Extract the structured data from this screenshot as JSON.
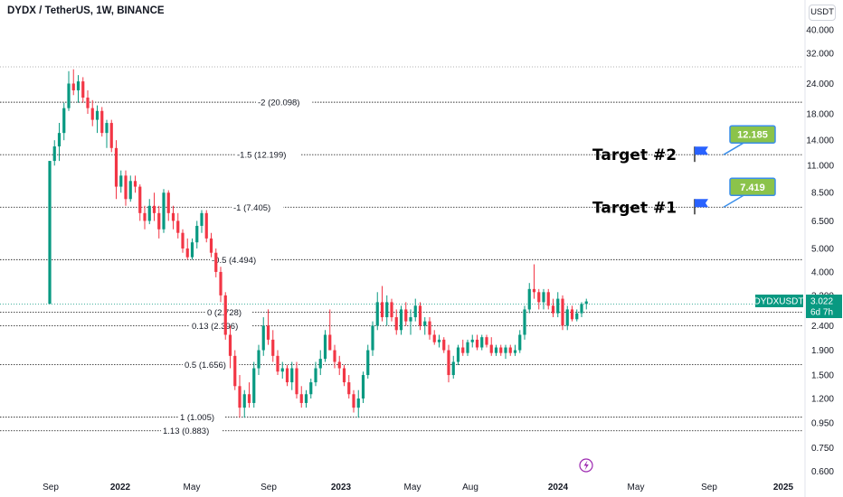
{
  "header": {
    "title": "DYDX / TetherUS, 1W, BINANCE"
  },
  "price_scale": {
    "unit": "USDT"
  },
  "current_price": {
    "symbol": "DYDXUSDT",
    "value": "3.022",
    "countdown": "6d 7h",
    "color": "#089981"
  },
  "colors": {
    "up": "#089981",
    "down": "#f23645",
    "callout": "#8bc34a",
    "callout_border": "#3a8eea",
    "flag": "#2962ff"
  },
  "chart_data": {
    "type": "candlestick",
    "title": "DYDX / TetherUS, 1W, BINANCE",
    "yscale": "log",
    "ylim": [
      0.6,
      40
    ],
    "y_ticks": [
      "40.000",
      "32.000",
      "24.000",
      "18.000",
      "14.000",
      "11.000",
      "8.500",
      "6.500",
      "5.000",
      "4.000",
      "3.022",
      "2.400",
      "1.900",
      "1.500",
      "1.200",
      "0.950",
      "0.750",
      "0.600"
    ],
    "x_ticks": [
      "Sep",
      "2022",
      "May",
      "Sep",
      "2023",
      "May",
      "Aug",
      "2024",
      "May",
      "Sep",
      "2025"
    ],
    "fib_levels": [
      {
        "label": "-2 (20.098)",
        "value": 20.098
      },
      {
        "label": "-1.5 (12.199)",
        "value": 12.199
      },
      {
        "label": "-1 (7.405)",
        "value": 7.405
      },
      {
        "label": "-0.5 (4.494)",
        "value": 4.494
      },
      {
        "label": "0 (2.728)",
        "value": 2.728
      },
      {
        "label": "0.13 (2.396)",
        "value": 2.396
      },
      {
        "label": "0.5 (1.656)",
        "value": 1.656
      },
      {
        "label": "1 (1.005)",
        "value": 1.005
      },
      {
        "label": "1.13 (0.883)",
        "value": 0.883
      }
    ],
    "targets": [
      {
        "label": "Target #2",
        "value": "12.185",
        "level": 12.199
      },
      {
        "label": "Target #1",
        "value": "7.419",
        "level": 7.405
      }
    ],
    "candles": [
      [
        2.95,
        11.5,
        2.95,
        11.5
      ],
      [
        11.5,
        14.0,
        11.0,
        13.2
      ],
      [
        13.2,
        16.5,
        11.5,
        15.0
      ],
      [
        15.0,
        20.0,
        14.0,
        19.0
      ],
      [
        19.0,
        27.0,
        18.5,
        24.0
      ],
      [
        24.0,
        27.5,
        21.5,
        22.5
      ],
      [
        22.5,
        26.0,
        20.0,
        24.5
      ],
      [
        24.5,
        25.5,
        20.0,
        21.0
      ],
      [
        21.0,
        22.5,
        18.0,
        19.0
      ],
      [
        19.0,
        20.5,
        16.0,
        17.0
      ],
      [
        17.0,
        19.5,
        15.0,
        18.5
      ],
      [
        18.5,
        19.2,
        14.5,
        15.0
      ],
      [
        15.0,
        17.0,
        13.0,
        16.5
      ],
      [
        16.5,
        17.0,
        12.5,
        13.0
      ],
      [
        13.0,
        14.0,
        8.0,
        9.0
      ],
      [
        9.0,
        10.5,
        8.5,
        10.0
      ],
      [
        10.0,
        10.5,
        7.5,
        8.0
      ],
      [
        8.0,
        10.0,
        7.8,
        9.5
      ],
      [
        9.5,
        10.0,
        8.5,
        9.0
      ],
      [
        9.0,
        9.2,
        6.5,
        7.0
      ],
      [
        7.0,
        7.5,
        6.0,
        6.5
      ],
      [
        6.5,
        8.0,
        6.3,
        7.5
      ],
      [
        7.5,
        8.5,
        6.5,
        7.0
      ],
      [
        7.0,
        7.5,
        5.5,
        6.0
      ],
      [
        6.0,
        8.8,
        5.8,
        8.5
      ],
      [
        8.5,
        8.7,
        6.5,
        7.0
      ],
      [
        7.0,
        7.5,
        6.0,
        6.5
      ],
      [
        6.5,
        7.0,
        5.5,
        5.8
      ],
      [
        5.8,
        6.0,
        4.8,
        5.0
      ],
      [
        5.0,
        5.5,
        4.5,
        4.6
      ],
      [
        4.6,
        5.5,
        4.5,
        5.3
      ],
      [
        5.3,
        6.5,
        5.0,
        6.2
      ],
      [
        6.2,
        7.2,
        5.8,
        7.0
      ],
      [
        7.0,
        7.2,
        5.3,
        5.5
      ],
      [
        5.5,
        5.8,
        4.6,
        4.8
      ],
      [
        4.8,
        5.0,
        3.8,
        4.0
      ],
      [
        4.0,
        4.2,
        3.0,
        3.2
      ],
      [
        3.2,
        3.3,
        2.1,
        2.2
      ],
      [
        2.2,
        2.4,
        1.6,
        1.8
      ],
      [
        1.8,
        1.9,
        1.3,
        1.35
      ],
      [
        1.35,
        1.5,
        1.0,
        1.1
      ],
      [
        1.1,
        1.3,
        1.0,
        1.25
      ],
      [
        1.25,
        1.4,
        1.1,
        1.15
      ],
      [
        1.15,
        1.7,
        1.1,
        1.6
      ],
      [
        1.6,
        2.0,
        1.5,
        1.9
      ],
      [
        1.9,
        2.6,
        1.8,
        2.4
      ],
      [
        2.4,
        2.8,
        2.0,
        2.1
      ],
      [
        2.1,
        2.3,
        1.7,
        1.8
      ],
      [
        1.8,
        1.9,
        1.5,
        1.55
      ],
      [
        1.55,
        1.7,
        1.45,
        1.6
      ],
      [
        1.6,
        1.65,
        1.35,
        1.4
      ],
      [
        1.4,
        1.7,
        1.3,
        1.6
      ],
      [
        1.6,
        1.7,
        1.2,
        1.25
      ],
      [
        1.25,
        1.35,
        1.1,
        1.15
      ],
      [
        1.15,
        1.3,
        1.1,
        1.25
      ],
      [
        1.25,
        1.45,
        1.2,
        1.4
      ],
      [
        1.4,
        1.7,
        1.35,
        1.6
      ],
      [
        1.6,
        1.9,
        1.5,
        1.75
      ],
      [
        1.75,
        2.3,
        1.7,
        2.2
      ],
      [
        2.2,
        2.8,
        1.9,
        1.9
      ],
      [
        1.9,
        2.0,
        1.6,
        1.7
      ],
      [
        1.7,
        1.8,
        1.5,
        1.6
      ],
      [
        1.6,
        1.65,
        1.35,
        1.4
      ],
      [
        1.4,
        1.5,
        1.2,
        1.25
      ],
      [
        1.25,
        1.3,
        1.05,
        1.1
      ],
      [
        1.1,
        1.3,
        1.0,
        1.2
      ],
      [
        1.2,
        1.55,
        1.15,
        1.5
      ],
      [
        1.5,
        2.0,
        1.45,
        1.9
      ],
      [
        1.9,
        2.5,
        1.8,
        2.4
      ],
      [
        2.4,
        3.3,
        2.3,
        3.0
      ],
      [
        3.0,
        3.5,
        2.5,
        2.6
      ],
      [
        2.6,
        3.2,
        2.4,
        3.0
      ],
      [
        3.0,
        3.1,
        2.5,
        2.6
      ],
      [
        2.6,
        2.8,
        2.2,
        2.3
      ],
      [
        2.3,
        2.9,
        2.2,
        2.8
      ],
      [
        2.8,
        3.0,
        2.4,
        2.5
      ],
      [
        2.5,
        2.8,
        2.2,
        2.6
      ],
      [
        2.6,
        3.1,
        2.5,
        2.9
      ],
      [
        2.9,
        3.0,
        2.3,
        2.4
      ],
      [
        2.4,
        2.6,
        2.2,
        2.5
      ],
      [
        2.5,
        2.6,
        2.1,
        2.2
      ],
      [
        2.2,
        2.3,
        2.0,
        2.05
      ],
      [
        2.05,
        2.2,
        1.95,
        2.1
      ],
      [
        2.1,
        2.15,
        1.85,
        1.9
      ],
      [
        1.9,
        2.0,
        1.4,
        1.5
      ],
      [
        1.5,
        1.8,
        1.45,
        1.7
      ],
      [
        1.7,
        2.0,
        1.65,
        1.95
      ],
      [
        1.95,
        2.1,
        1.8,
        1.85
      ],
      [
        1.85,
        2.1,
        1.8,
        2.05
      ],
      [
        2.05,
        2.2,
        1.95,
        2.1
      ],
      [
        2.1,
        2.2,
        1.9,
        1.95
      ],
      [
        1.95,
        2.2,
        1.9,
        2.15
      ],
      [
        2.15,
        2.2,
        1.95,
        2.0
      ],
      [
        2.0,
        2.15,
        1.8,
        1.85
      ],
      [
        1.85,
        2.0,
        1.8,
        1.95
      ],
      [
        1.95,
        2.0,
        1.8,
        1.85
      ],
      [
        1.85,
        2.0,
        1.75,
        1.95
      ],
      [
        1.95,
        2.0,
        1.8,
        1.85
      ],
      [
        1.85,
        2.0,
        1.8,
        1.9
      ],
      [
        1.9,
        2.3,
        1.85,
        2.2
      ],
      [
        2.2,
        2.9,
        2.1,
        2.8
      ],
      [
        2.8,
        3.6,
        2.7,
        3.4
      ],
      [
        3.4,
        4.3,
        3.1,
        3.3
      ],
      [
        3.3,
        3.4,
        2.8,
        3.0
      ],
      [
        3.0,
        3.4,
        2.8,
        3.3
      ],
      [
        3.3,
        3.4,
        2.8,
        2.9
      ],
      [
        2.9,
        3.1,
        2.6,
        2.7
      ],
      [
        2.7,
        3.3,
        2.6,
        3.1
      ],
      [
        3.1,
        3.2,
        2.3,
        2.4
      ],
      [
        2.4,
        2.9,
        2.3,
        2.8
      ],
      [
        2.8,
        2.9,
        2.5,
        2.55
      ],
      [
        2.55,
        2.8,
        2.5,
        2.7
      ],
      [
        2.7,
        3.0,
        2.6,
        2.95
      ],
      [
        2.95,
        3.1,
        2.8,
        3.022
      ]
    ]
  }
}
